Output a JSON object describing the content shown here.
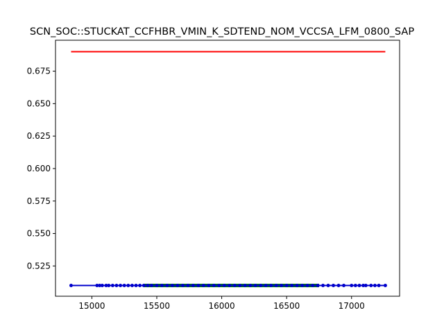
{
  "chart_data": {
    "type": "line",
    "title": "SCN_SOC::STUCKAT_CCFHBR_VMIN_K_SDTEND_NOM_VCCSA_LFM_0800_SAP",
    "xlabel": "",
    "ylabel": "",
    "xlim": [
      14720,
      17370
    ],
    "ylim": [
      0.5017,
      0.6988
    ],
    "grid": false,
    "xticks": [
      15000,
      15500,
      16000,
      16500,
      17000
    ],
    "xtick_labels": [
      "15000",
      "15500",
      "16000",
      "16500",
      "17000"
    ],
    "yticks": [
      0.525,
      0.55,
      0.575,
      0.6,
      0.625,
      0.65,
      0.675
    ],
    "ytick_labels": [
      "0.525",
      "0.550",
      "0.575",
      "0.600",
      "0.625",
      "0.650",
      "0.675"
    ],
    "series": [
      {
        "color": "#ff0000",
        "x": [
          14840,
          17260
        ],
        "y": [
          0.69,
          0.69
        ]
      },
      {
        "color": "#008000",
        "x": [
          15400,
          16750
        ],
        "y": [
          0.51,
          0.51
        ]
      },
      {
        "color": "#0000cc",
        "x": [
          14840,
          17260
        ],
        "y": [
          0.51,
          0.51
        ]
      }
    ],
    "points": {
      "color": "#0000cc",
      "y": 0.51,
      "x": [
        14840,
        15040,
        15060,
        15080,
        15110,
        15130,
        15160,
        15190,
        15220,
        15250,
        15280,
        15310,
        15340,
        15370,
        15400,
        15430,
        15460,
        15500,
        15540,
        15580,
        15620,
        15660,
        15700,
        15740,
        15780,
        15820,
        15860,
        15900,
        15940,
        15980,
        16020,
        16060,
        16100,
        16140,
        16180,
        16220,
        16260,
        16300,
        16340,
        16380,
        16420,
        16460,
        16500,
        16540,
        16580,
        16620,
        16660,
        16700,
        16740,
        16780,
        16820,
        16860,
        16900,
        16940,
        17000,
        17030,
        17060,
        17090,
        17110,
        17150,
        17180,
        17210,
        17260
      ]
    }
  }
}
